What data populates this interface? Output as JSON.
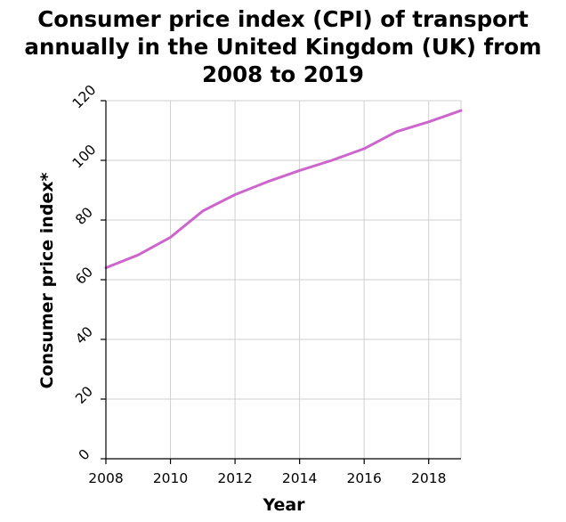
{
  "chart_data": {
    "type": "line",
    "title_lines": [
      "Consumer price index (CPI) of transport",
      "annually in the United Kingdom (UK) from",
      "2008 to 2019"
    ],
    "xlabel": "Year",
    "ylabel": "Consumer price index*",
    "xlim": [
      2008,
      2019
    ],
    "ylim": [
      0,
      120
    ],
    "x_ticks": [
      2008,
      2010,
      2012,
      2014,
      2016,
      2018
    ],
    "x_tick_labels": [
      "2008",
      "2010",
      "2012",
      "2014",
      "2016",
      "2018"
    ],
    "y_ticks": [
      0,
      20,
      40,
      60,
      80,
      100,
      120
    ],
    "y_tick_labels": [
      "0",
      "20",
      "40",
      "60",
      "80",
      "100",
      "120"
    ],
    "grid": true,
    "series": [
      {
        "color": "#cc66cc",
        "x": [
          2008,
          2009,
          2010,
          2011,
          2012,
          2013,
          2014,
          2015,
          2016,
          2017,
          2018,
          2019
        ],
        "values": [
          64.0,
          68.3,
          74.2,
          83.0,
          88.5,
          92.8,
          96.6,
          100.0,
          103.9,
          109.6,
          112.9,
          116.7
        ]
      }
    ]
  }
}
